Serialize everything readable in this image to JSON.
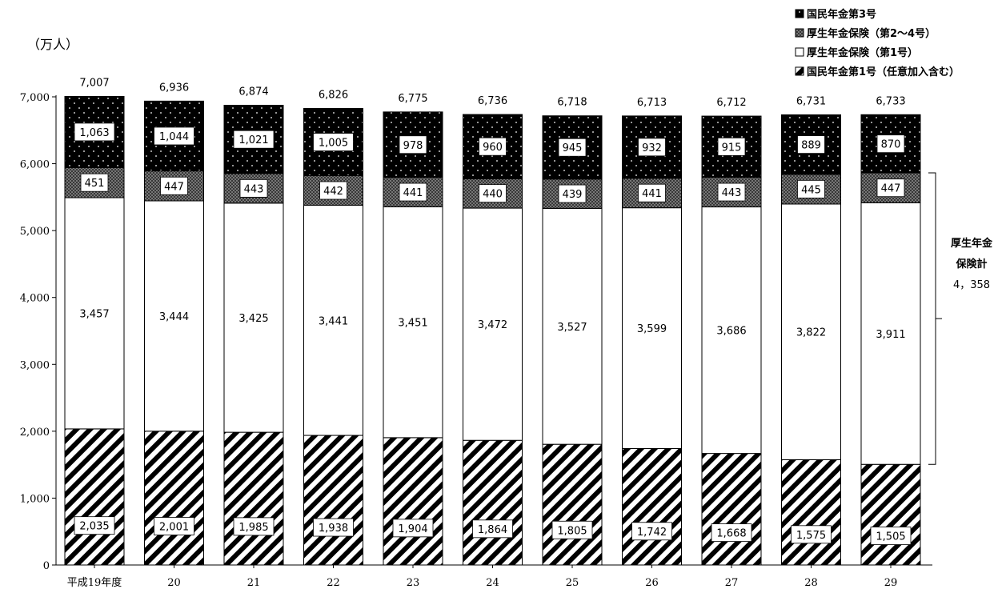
{
  "chart_data": {
    "type": "bar",
    "stacked": true,
    "ylabel": "（万人）",
    "ylim": [
      0,
      7000
    ],
    "yticks": [
      "0",
      "1,000",
      "2,000",
      "3,000",
      "4,000",
      "5,000",
      "6,000",
      "7,000"
    ],
    "ytick_values": [
      0,
      1000,
      2000,
      3000,
      4000,
      5000,
      6000,
      7000
    ],
    "categories": [
      "平成19年度",
      "20",
      "21",
      "22",
      "23",
      "24",
      "25",
      "26",
      "27",
      "28",
      "29"
    ],
    "series": [
      {
        "name": "国民年金第1号（任意加入含む）",
        "pattern": "diagonal-stripes",
        "values": [
          2035,
          2001,
          1985,
          1938,
          1904,
          1864,
          1805,
          1742,
          1668,
          1575,
          1505
        ],
        "labels": [
          "2,035",
          "2,001",
          "1,985",
          "1,938",
          "1,904",
          "1,864",
          "1,805",
          "1,742",
          "1,668",
          "1,575",
          "1,505"
        ]
      },
      {
        "name": "厚生年金保険（第1号）",
        "pattern": "white",
        "values": [
          3457,
          3444,
          3425,
          3441,
          3451,
          3472,
          3527,
          3599,
          3686,
          3822,
          3911
        ],
        "labels": [
          "3,457",
          "3,444",
          "3,425",
          "3,441",
          "3,451",
          "3,472",
          "3,527",
          "3,599",
          "3,686",
          "3,822",
          "3,911"
        ]
      },
      {
        "name": "厚生年金保険（第2～4号）",
        "pattern": "crosshatch",
        "values": [
          451,
          447,
          443,
          442,
          441,
          440,
          439,
          441,
          443,
          445,
          447
        ],
        "labels": [
          "451",
          "447",
          "443",
          "442",
          "441",
          "440",
          "439",
          "441",
          "443",
          "445",
          "447"
        ]
      },
      {
        "name": "国民年金第3号",
        "pattern": "black-dots",
        "values": [
          1063,
          1044,
          1021,
          1005,
          978,
          960,
          945,
          932,
          915,
          889,
          870
        ],
        "labels": [
          "1,063",
          "1,044",
          "1,021",
          "1,005",
          "978",
          "960",
          "945",
          "932",
          "915",
          "889",
          "870"
        ]
      }
    ],
    "totals": [
      "7,007",
      "6,936",
      "6,874",
      "6,826",
      "6,775",
      "6,736",
      "6,718",
      "6,713",
      "6,712",
      "6,731",
      "6,733"
    ],
    "total_values": [
      7007,
      6936,
      6874,
      6826,
      6775,
      6736,
      6718,
      6713,
      6712,
      6731,
      6733
    ],
    "legend": [
      "国民年金第3号",
      "厚生年金保険（第2～4号）",
      "厚生年金保険（第1号）",
      "国民年金第1号（任意加入含む）"
    ],
    "legend_position": "top-right",
    "annotation": {
      "line1": "厚生年金",
      "line2": "保険計",
      "line3": "4，358",
      "value": 4358
    }
  }
}
